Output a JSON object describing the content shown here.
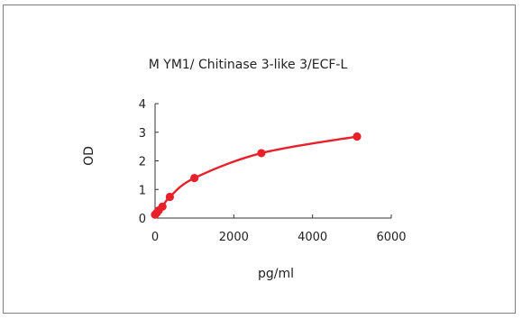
{
  "chart_data": {
    "type": "scatter",
    "title": "M   YM1/ Chitinase 3-like 3/ECF-L",
    "xlabel": "pg/ml",
    "ylabel": "OD",
    "xlim": [
      0,
      6000
    ],
    "ylim": [
      0,
      4
    ],
    "x_ticks": [
      0,
      2000,
      4000,
      6000
    ],
    "y_ticks": [
      0,
      1,
      2,
      3,
      4
    ],
    "x_tick_labels": [
      "0",
      "2000",
      "4000",
      "6000"
    ],
    "y_tick_labels": [
      "0",
      "1",
      "2",
      "3",
      "4"
    ],
    "grid": false,
    "legend": "none",
    "series": [
      {
        "points": [
          {
            "x": 0,
            "y": 0.12
          },
          {
            "x": 47,
            "y": 0.19
          },
          {
            "x": 94,
            "y": 0.27
          },
          {
            "x": 188,
            "y": 0.4
          },
          {
            "x": 375,
            "y": 0.74
          },
          {
            "x": 1000,
            "y": 1.4
          },
          {
            "x": 2700,
            "y": 2.27
          },
          {
            "x": 5130,
            "y": 2.85
          }
        ],
        "fit": "smooth-curve"
      }
    ],
    "colors": {
      "series": "#e8202a",
      "axis": "#333333"
    }
  }
}
